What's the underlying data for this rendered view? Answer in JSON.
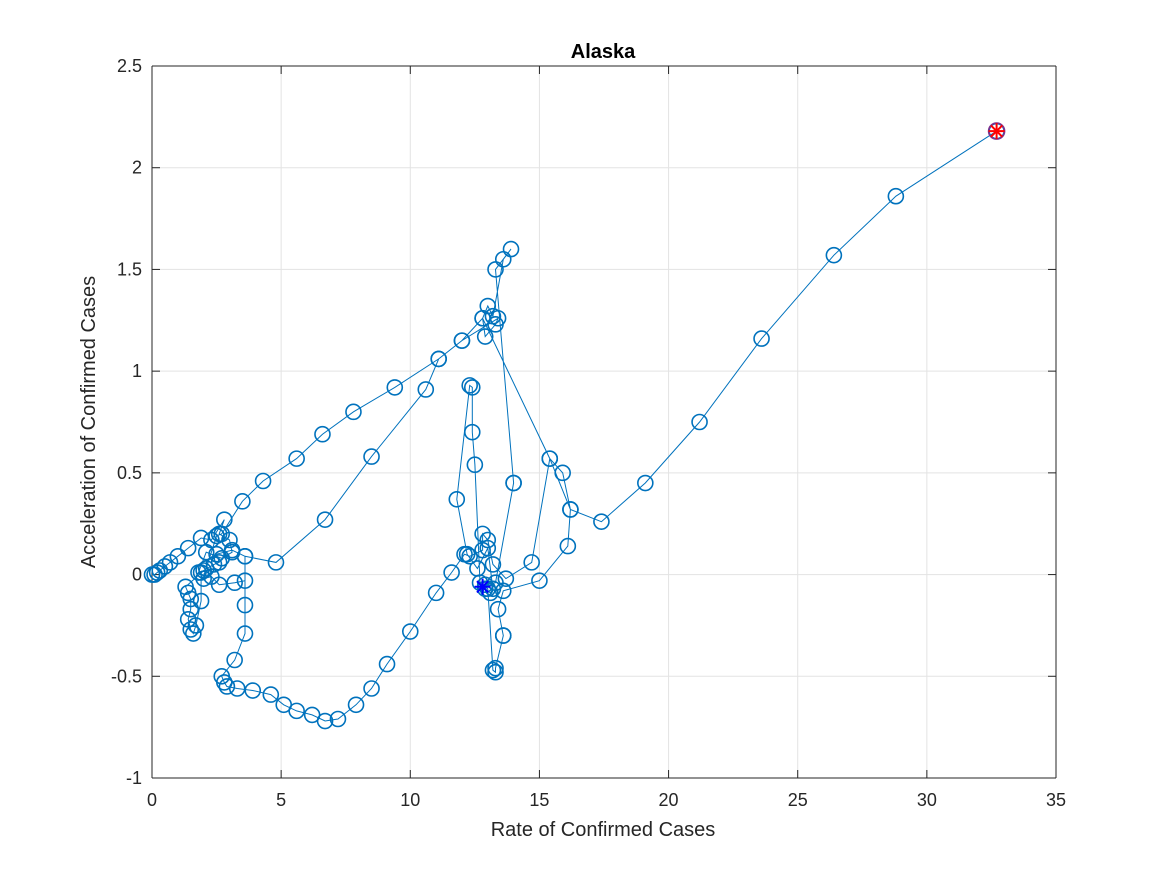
{
  "chart_data": {
    "type": "line",
    "title": "Alaska",
    "xlabel": "Rate of Confirmed Cases",
    "ylabel": "Acceleration of Confirmed Cases",
    "xlim": [
      0,
      35
    ],
    "ylim": [
      -1,
      2.5
    ],
    "xticks": [
      "0",
      "5",
      "10",
      "15",
      "20",
      "25",
      "30",
      "35"
    ],
    "yticks": [
      "-1",
      "-0.5",
      "0",
      "0.5",
      "1",
      "1.5",
      "2",
      "2.5"
    ],
    "grid": true,
    "colors": {
      "series": "#0072bd",
      "start_marker": "#0000ff",
      "end_marker": "#ff0000",
      "end_circle": "#7e2f8e"
    },
    "series": [
      {
        "marker": "circle",
        "points": [
          [
            0,
            0
          ],
          [
            0.1,
            0
          ],
          [
            0.2,
            0.01
          ],
          [
            0.3,
            0.02
          ],
          [
            0.5,
            0.04
          ],
          [
            0.7,
            0.06
          ],
          [
            1,
            0.09
          ],
          [
            1.4,
            0.13
          ],
          [
            1.9,
            0.18
          ],
          [
            2.3,
            0.17
          ],
          [
            2.8,
            0.27
          ],
          [
            2.6,
            0.2
          ],
          [
            3.0,
            0.17
          ],
          [
            3.1,
            0.11
          ],
          [
            2.7,
            0.08
          ],
          [
            2.1,
            0.11
          ],
          [
            1.8,
            0.01
          ],
          [
            2.0,
            -0.02
          ],
          [
            2.3,
            -0.01
          ],
          [
            2.6,
            -0.05
          ],
          [
            3.2,
            -0.04
          ],
          [
            3.6,
            -0.03
          ],
          [
            3.6,
            0.09
          ],
          [
            3.6,
            -0.15
          ],
          [
            3.6,
            -0.29
          ],
          [
            3.2,
            -0.42
          ],
          [
            2.7,
            -0.5
          ],
          [
            2.8,
            -0.53
          ],
          [
            2.9,
            -0.55
          ],
          [
            3.3,
            -0.56
          ],
          [
            3.9,
            -0.57
          ],
          [
            4.6,
            -0.59
          ],
          [
            5.1,
            -0.64
          ],
          [
            5.6,
            -0.67
          ],
          [
            6.2,
            -0.69
          ],
          [
            6.7,
            -0.72
          ],
          [
            7.2,
            -0.71
          ],
          [
            7.9,
            -0.64
          ],
          [
            8.5,
            -0.56
          ],
          [
            9.1,
            -0.44
          ],
          [
            10.0,
            -0.28
          ],
          [
            11.0,
            -0.09
          ],
          [
            11.6,
            0.01
          ],
          [
            12.1,
            0.1
          ],
          [
            12.3,
            0.09
          ],
          [
            12.8,
            0.12
          ],
          [
            12.8,
            0.2
          ],
          [
            13.0,
            0.17
          ],
          [
            13.2,
            0.05
          ],
          [
            13.7,
            -0.02
          ],
          [
            14.7,
            0.06
          ],
          [
            15.4,
            0.57
          ],
          [
            15.9,
            0.5
          ],
          [
            16.2,
            0.32
          ],
          [
            16.1,
            0.14
          ],
          [
            15.0,
            -0.03
          ],
          [
            13.6,
            -0.08
          ],
          [
            13.4,
            -0.17
          ],
          [
            13.6,
            -0.3
          ],
          [
            13.6,
            -0.3
          ],
          [
            13.3,
            -0.46
          ],
          [
            13.3,
            -0.48
          ],
          [
            13.2,
            -0.47
          ],
          [
            13.0,
            -0.07
          ],
          [
            12.7,
            -0.04
          ],
          [
            12.5,
            0.54
          ],
          [
            12.4,
            0.7
          ],
          [
            12.4,
            0.92
          ],
          [
            12.3,
            0.93
          ],
          [
            11.8,
            0.37
          ],
          [
            12.2,
            0.1
          ],
          [
            12.6,
            0.03
          ],
          [
            13.0,
            0.13
          ],
          [
            13.2,
            -0.07
          ],
          [
            13.1,
            -0.09
          ],
          [
            12.9,
            -0.07
          ],
          [
            12.9,
            -0.05
          ],
          [
            13.3,
            -0.04
          ],
          [
            14.0,
            0.45
          ],
          [
            14.0,
            0.45
          ],
          [
            13.3,
            1.5
          ],
          [
            13.9,
            1.6
          ],
          [
            13.6,
            1.55
          ],
          [
            13.2,
            1.27
          ],
          [
            13.0,
            1.32
          ],
          [
            12.8,
            1.26
          ],
          [
            12.9,
            1.17
          ],
          [
            13.3,
            1.23
          ],
          [
            13.4,
            1.26
          ],
          [
            12.0,
            1.15
          ],
          [
            11.1,
            1.06
          ],
          [
            10.6,
            0.91
          ],
          [
            8.5,
            0.58
          ],
          [
            6.7,
            0.27
          ],
          [
            4.8,
            0.06
          ],
          [
            3.6,
            0.09
          ],
          [
            3.1,
            0.12
          ],
          [
            2.5,
            0.1
          ],
          [
            2.6,
            0.06
          ],
          [
            2.4,
            0.05
          ],
          [
            2.0,
            0.02
          ],
          [
            1.9,
            0.01
          ],
          [
            1.9,
            -0.13
          ],
          [
            1.7,
            -0.25
          ],
          [
            1.6,
            -0.29
          ],
          [
            1.5,
            -0.27
          ],
          [
            1.4,
            -0.22
          ],
          [
            1.5,
            -0.17
          ],
          [
            1.5,
            -0.12
          ],
          [
            1.4,
            -0.09
          ],
          [
            1.3,
            -0.06
          ],
          [
            2.1,
            0.03
          ],
          [
            2.5,
            0.19
          ],
          [
            2.7,
            0.2
          ],
          [
            3.5,
            0.36
          ],
          [
            4.3,
            0.46
          ],
          [
            5.6,
            0.57
          ],
          [
            6.6,
            0.69
          ],
          [
            7.8,
            0.8
          ],
          [
            9.4,
            0.92
          ],
          [
            11.1,
            1.06
          ],
          [
            12.0,
            1.15
          ],
          [
            12.8,
            1.26
          ],
          [
            15.4,
            0.57
          ],
          [
            16.2,
            0.32
          ],
          [
            17.4,
            0.26
          ],
          [
            19.1,
            0.45
          ],
          [
            21.2,
            0.75
          ],
          [
            23.6,
            1.16
          ],
          [
            26.4,
            1.57
          ],
          [
            28.8,
            1.86
          ],
          [
            32.7,
            2.18
          ]
        ]
      }
    ],
    "start_point": [
      12.8,
      -0.06
    ],
    "end_point": [
      32.7,
      2.18
    ]
  }
}
